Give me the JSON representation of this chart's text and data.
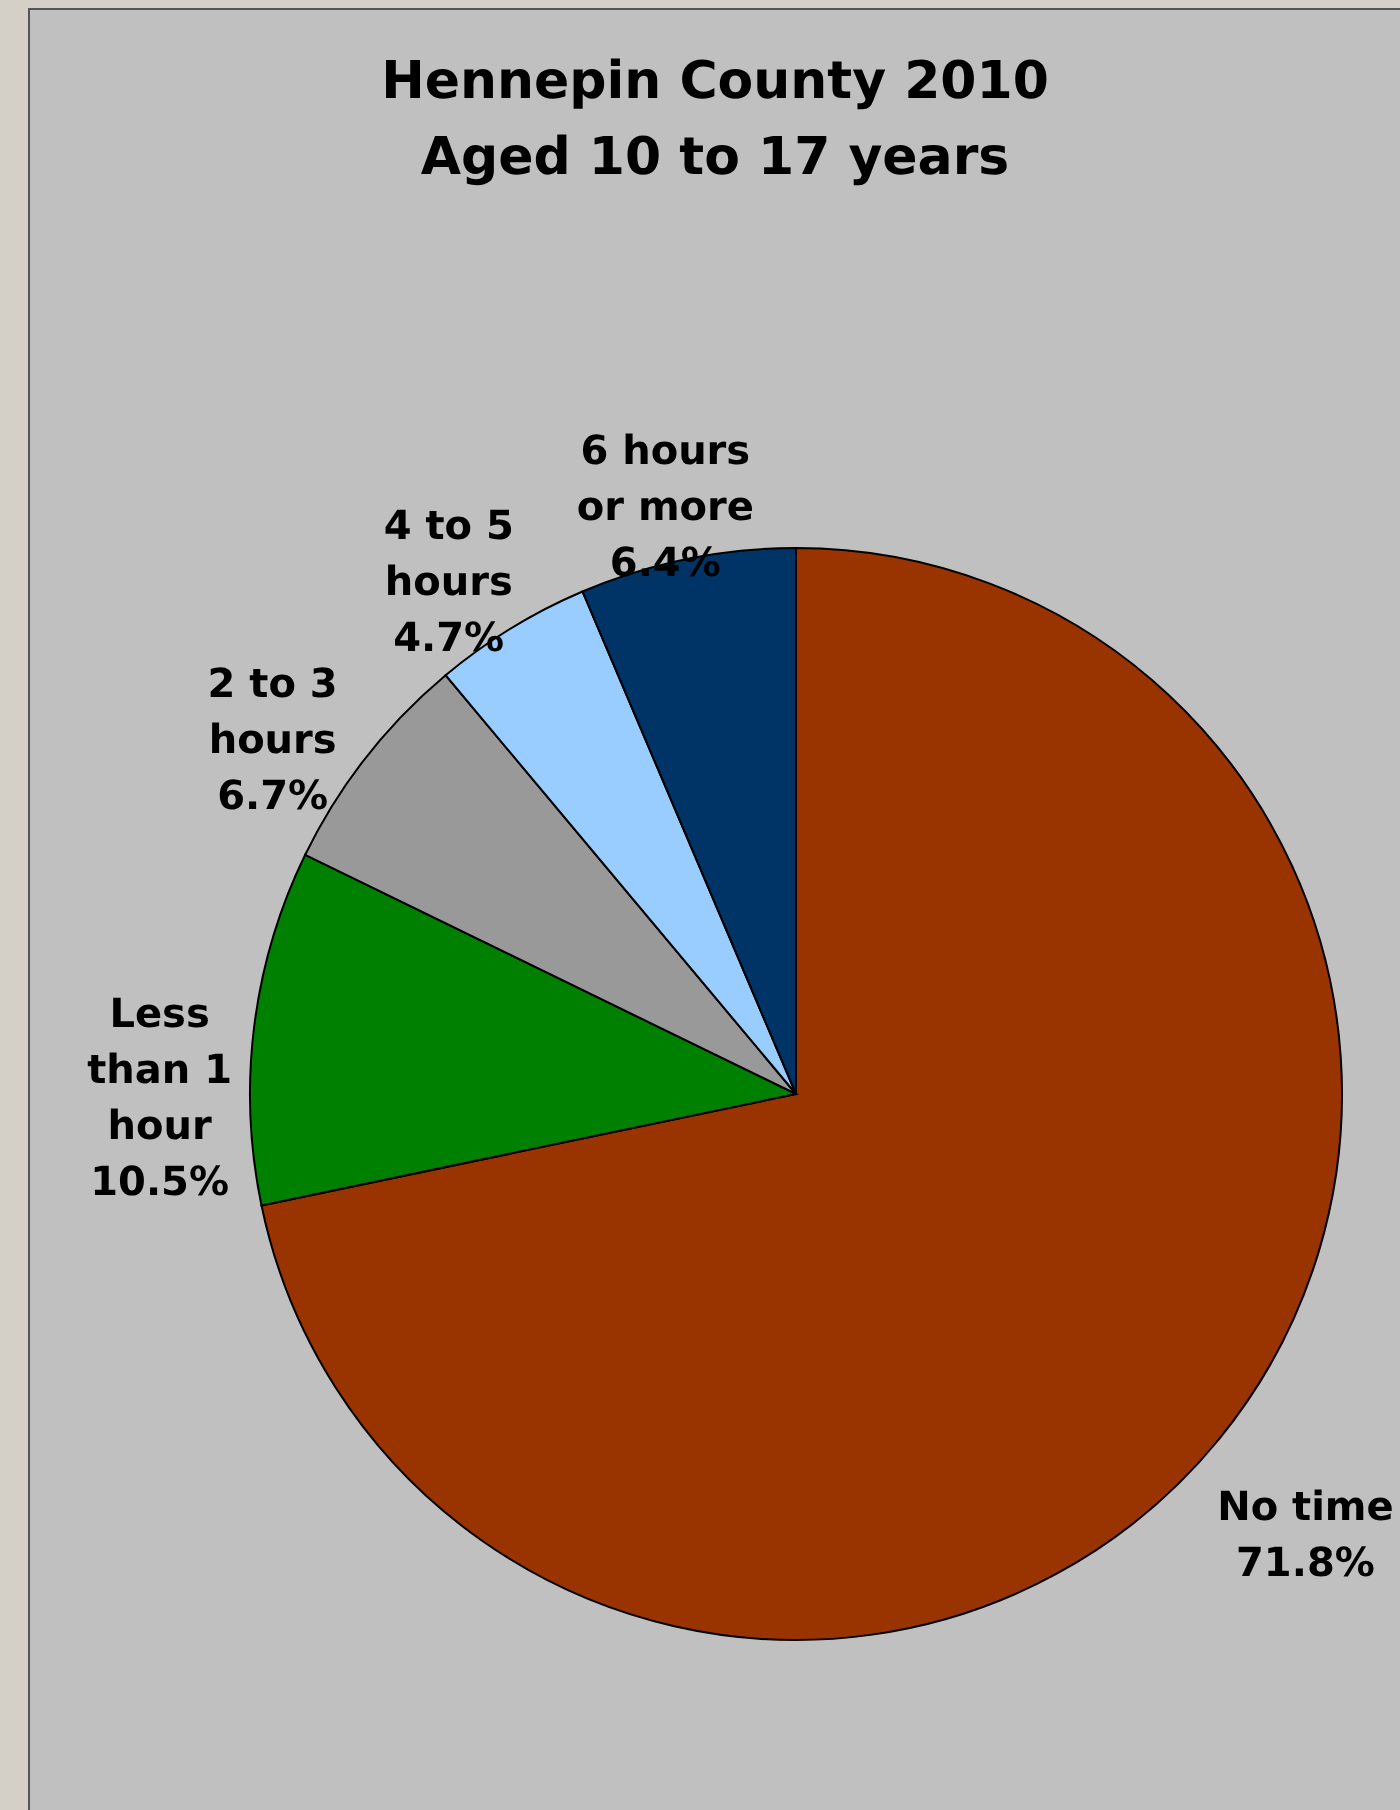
{
  "chart_data": {
    "type": "pie",
    "title": "Hennepin County 2010\nAged 10 to 17 years",
    "categories": [
      "No time",
      "Less than 1 hour",
      "2 to 3 hours",
      "4 to 5 hours",
      "6 hours or more"
    ],
    "values": [
      71.8,
      10.5,
      6.7,
      4.7,
      6.4
    ],
    "value_labels": [
      "71.8%",
      "10.5%",
      "6.7%",
      "4.7%",
      "6.4%"
    ],
    "colors": [
      "#993300",
      "#008000",
      "#999999",
      "#99ccff",
      "#003366"
    ]
  }
}
